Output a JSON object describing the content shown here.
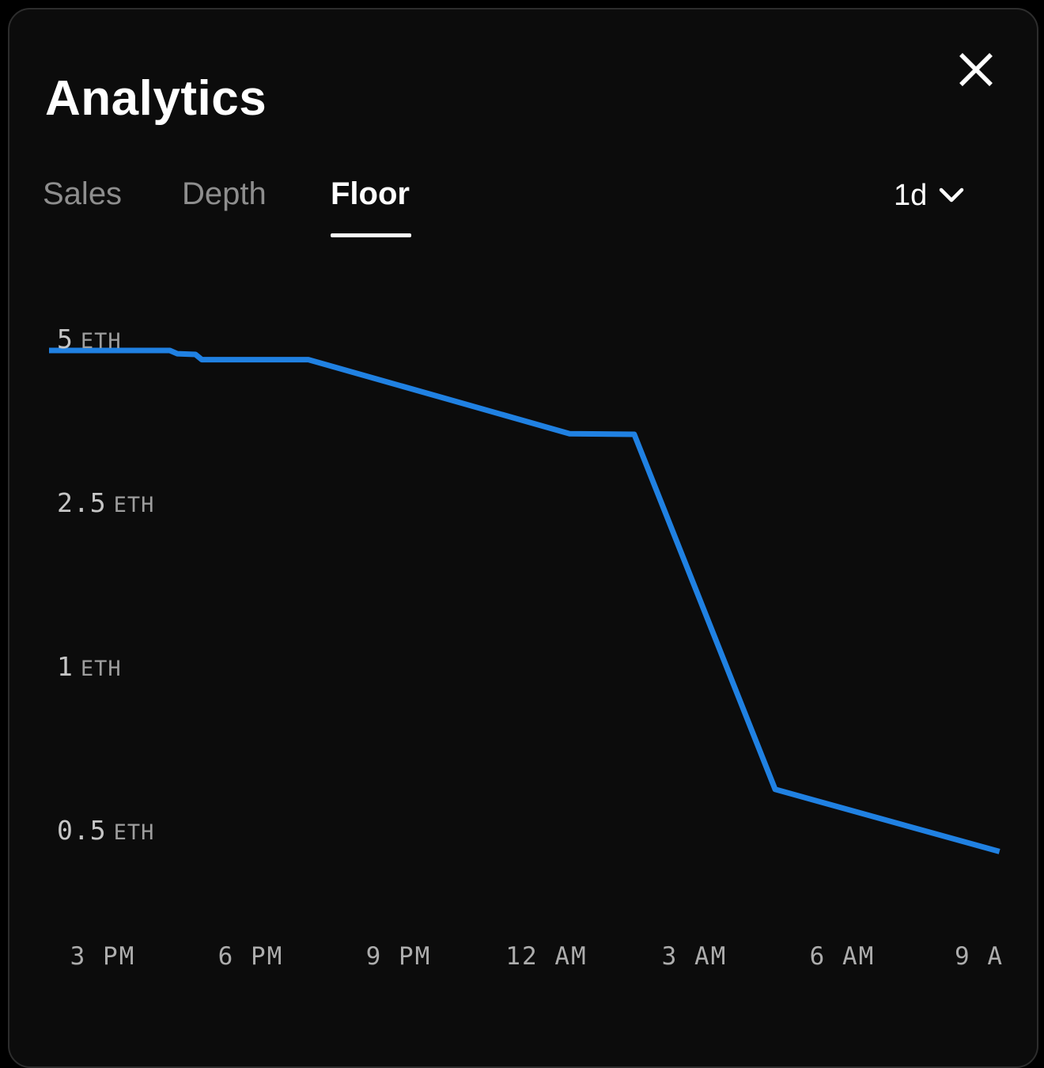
{
  "header": {
    "title": "Analytics"
  },
  "tabs": [
    {
      "label": "Sales",
      "active": false
    },
    {
      "label": "Depth",
      "active": false
    },
    {
      "label": "Floor",
      "active": true
    }
  ],
  "timeframe": {
    "value": "1d",
    "icon": "chevron-down-icon"
  },
  "close": {
    "icon": "close-icon"
  },
  "colors": {
    "page_bg": "#000000",
    "modal_bg": "#0c0c0c",
    "modal_border": "#2d2d2d",
    "text_primary": "#ffffff",
    "text_muted": "#8e8e8e",
    "axis_value": "#c6c6c6",
    "axis_unit": "#9e9e9e",
    "axis_time": "#adadad",
    "line_blue": "#2081e2"
  },
  "chart_data": {
    "type": "line",
    "x_unit": "hours_from_start",
    "x_range": [
      0,
      19.28
    ],
    "grid": false,
    "legend": "none",
    "y_scale_note": "y ticks equally spaced in pixels; values interpolated linearly between adjacent ticks",
    "y_ticks": [
      {
        "value_text": "5",
        "unit": "ETH",
        "value": 5
      },
      {
        "value_text": "2.5",
        "unit": "ETH",
        "value": 2.5
      },
      {
        "value_text": "1",
        "unit": "ETH",
        "value": 1
      },
      {
        "value_text": "0.5",
        "unit": "ETH",
        "value": 0.5
      }
    ],
    "x_ticks": [
      {
        "label": "3 PM",
        "h": 1.09
      },
      {
        "label": "6 PM",
        "h": 4.09
      },
      {
        "label": "9 PM",
        "h": 7.09
      },
      {
        "label": "12 AM",
        "h": 10.09
      },
      {
        "label": "3 AM",
        "h": 13.09
      },
      {
        "label": "6 AM",
        "h": 16.09
      },
      {
        "label": "9 A",
        "h": 18.87
      }
    ],
    "series": [
      {
        "name": "Floor",
        "color": "#2081e2",
        "points": [
          {
            "h": 0.0,
            "eth": 5.0
          },
          {
            "h": 2.45,
            "eth": 5.0
          },
          {
            "h": 2.6,
            "eth": 4.95
          },
          {
            "h": 2.97,
            "eth": 4.94
          },
          {
            "h": 3.1,
            "eth": 4.86
          },
          {
            "h": 5.26,
            "eth": 4.86
          },
          {
            "h": 10.56,
            "eth": 3.73
          },
          {
            "h": 11.87,
            "eth": 3.72
          },
          {
            "h": 14.73,
            "eth": 0.66
          },
          {
            "h": 19.28,
            "eth": 0.47
          }
        ]
      }
    ]
  }
}
